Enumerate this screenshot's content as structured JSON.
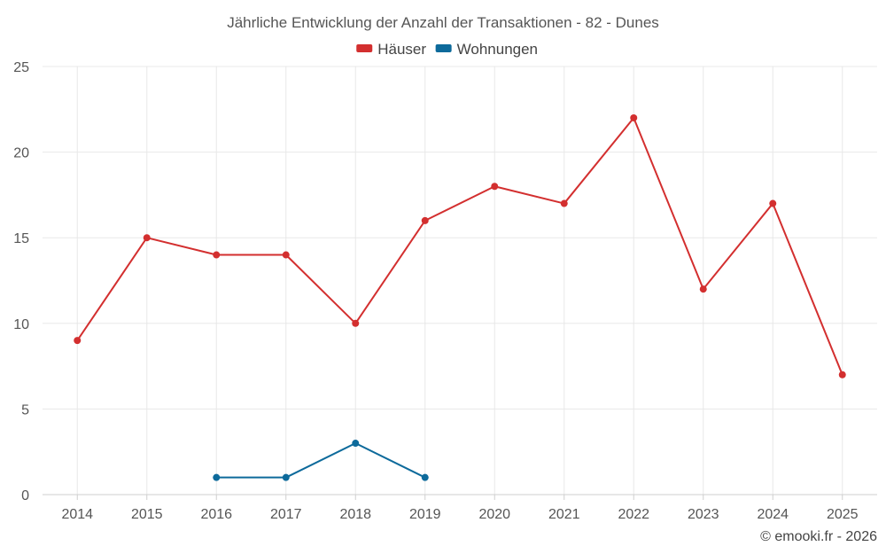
{
  "chart_data": {
    "type": "line",
    "title": "Jährliche Entwicklung der Anzahl der Transaktionen - 82 - Dunes",
    "categories": [
      "2014",
      "2015",
      "2016",
      "2017",
      "2018",
      "2019",
      "2020",
      "2021",
      "2022",
      "2023",
      "2024",
      "2025"
    ],
    "series": [
      {
        "name": "Häuser",
        "color": "#d32f2f",
        "values": [
          9,
          15,
          14,
          14,
          10,
          16,
          18,
          17,
          22,
          12,
          17,
          7
        ]
      },
      {
        "name": "Wohnungen",
        "color": "#0d6a9b",
        "values": [
          null,
          null,
          1,
          1,
          3,
          1,
          null,
          null,
          null,
          null,
          null,
          null
        ]
      }
    ],
    "ylim": [
      0,
      25
    ],
    "yticks": [
      0,
      5,
      10,
      15,
      20,
      25
    ],
    "xlabel": "",
    "ylabel": "",
    "grid": true,
    "legend": "top-center"
  },
  "credit": "© emooki.fr - 2026"
}
